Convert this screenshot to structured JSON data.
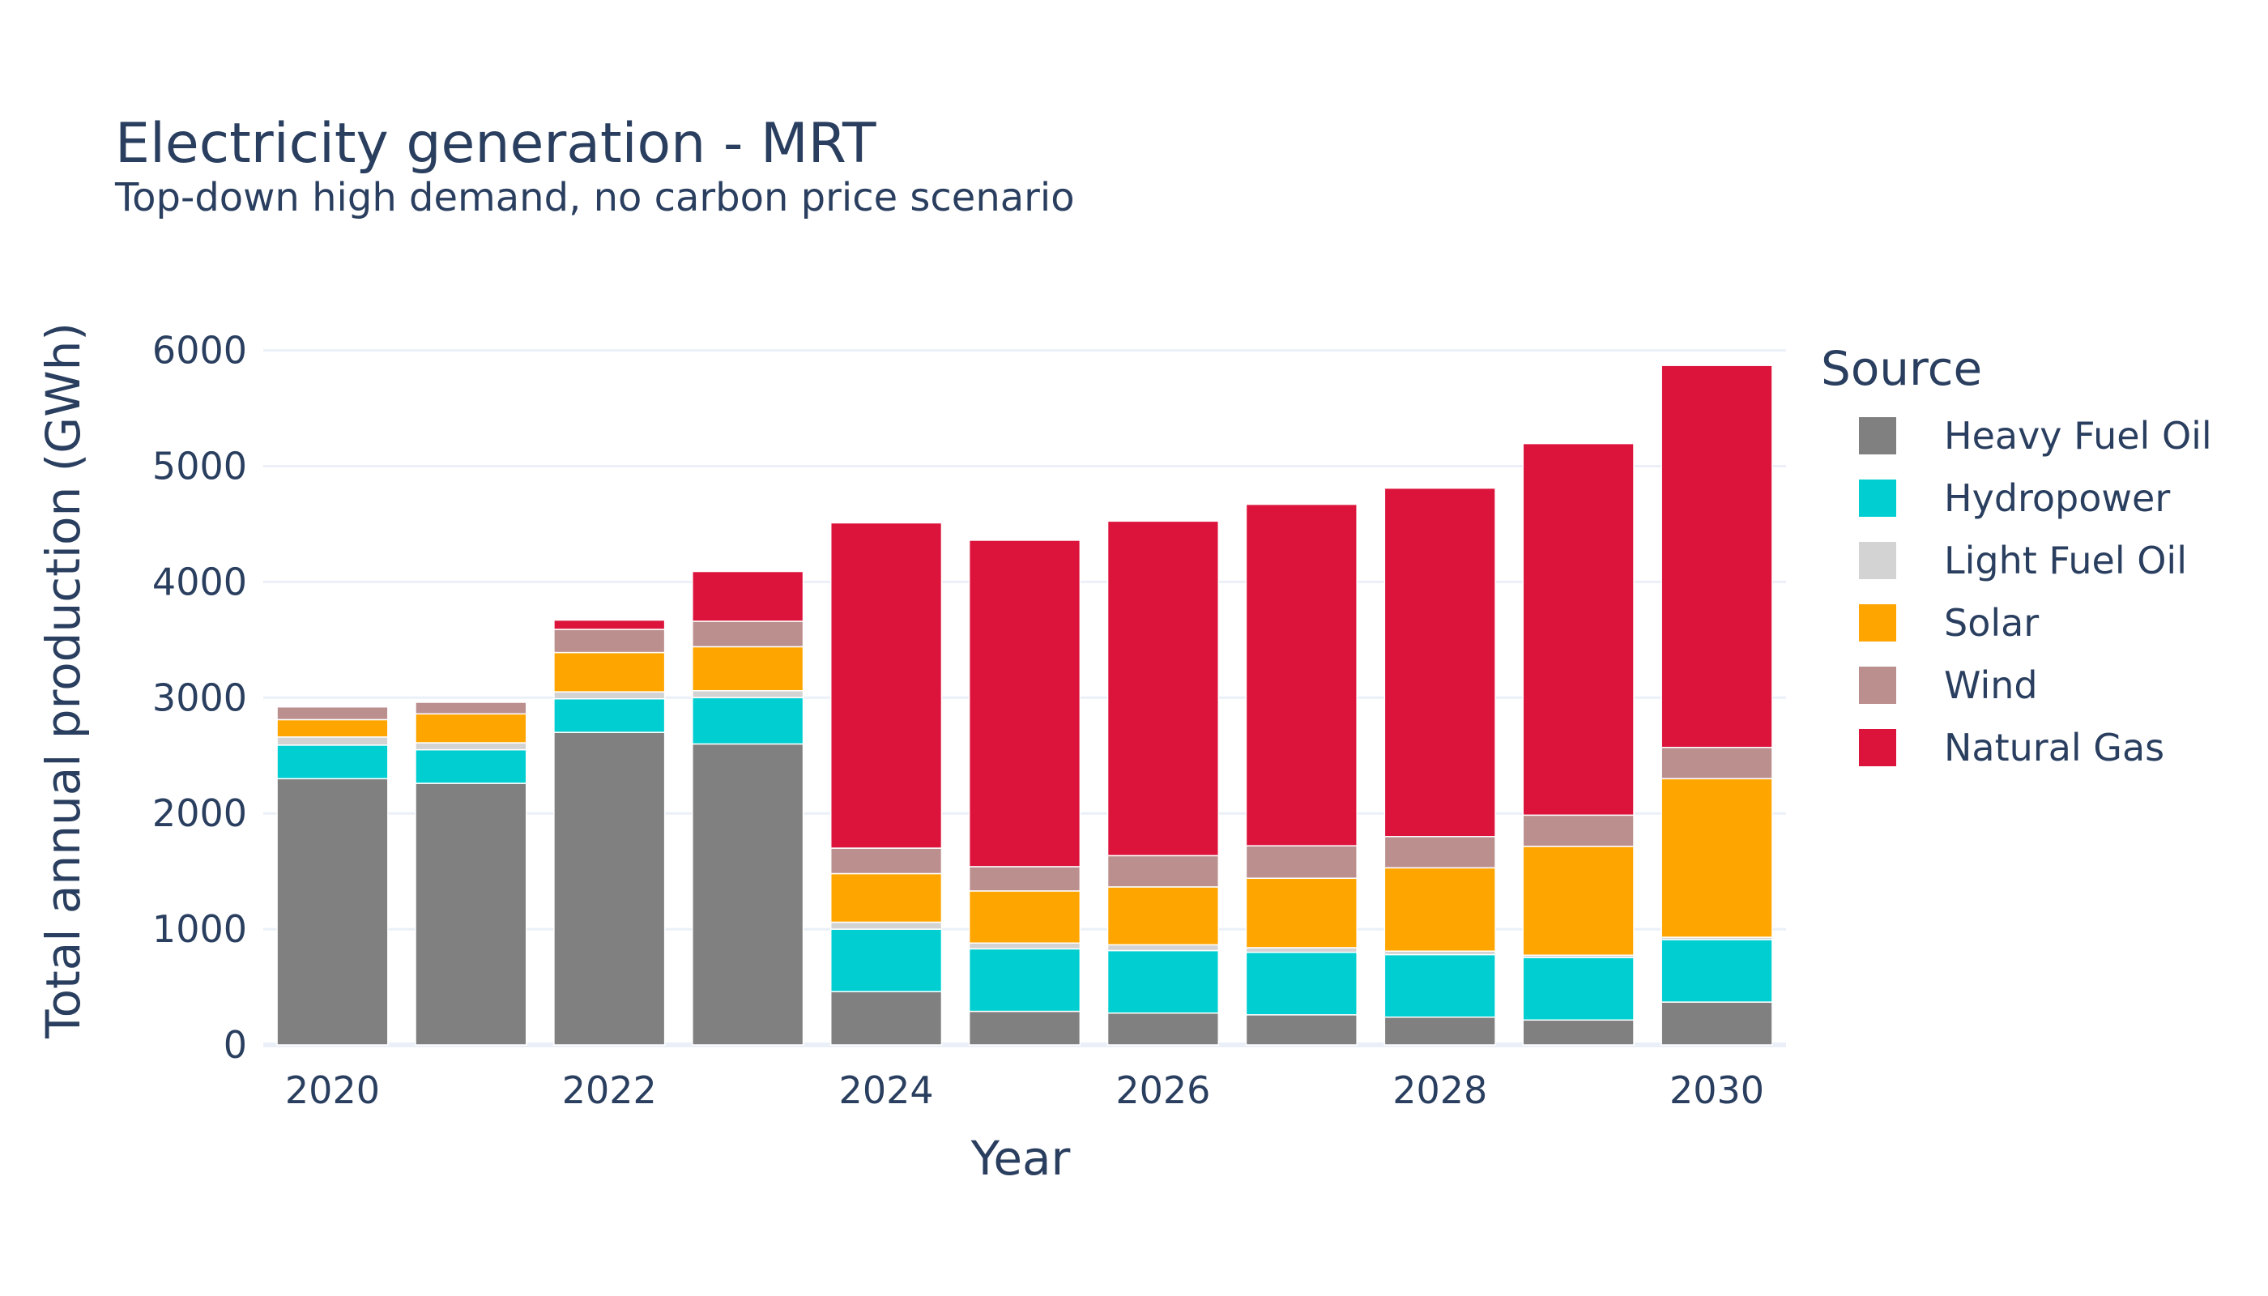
{
  "chart_data": {
    "type": "bar",
    "stacked": true,
    "title": "Electricity generation - MRT",
    "subtitle": "Top-down high demand, no carbon price scenario",
    "xlabel": "Year",
    "ylabel": "Total annual production (GWh)",
    "ylim": [
      0,
      6200
    ],
    "yticks": [
      0,
      1000,
      2000,
      3000,
      4000,
      5000,
      6000
    ],
    "xtick_labels": [
      "2020",
      "2022",
      "2024",
      "2026",
      "2028",
      "2030"
    ],
    "grid": true,
    "legend_title": "Source",
    "legend_position": "right",
    "categories": [
      2020,
      2021,
      2022,
      2023,
      2024,
      2025,
      2026,
      2027,
      2028,
      2029,
      2030
    ],
    "series": [
      {
        "name": "Heavy Fuel Oil",
        "color": "#808080",
        "values": [
          2300,
          2260,
          2700,
          2600,
          460,
          290,
          275,
          260,
          240,
          215,
          370
        ]
      },
      {
        "name": "Hydropower",
        "color": "#00CED1",
        "values": [
          290,
          290,
          290,
          400,
          540,
          540,
          540,
          540,
          540,
          540,
          540
        ]
      },
      {
        "name": "Light Fuel Oil",
        "color": "#D3D3D3",
        "values": [
          70,
          60,
          60,
          60,
          60,
          50,
          50,
          40,
          30,
          20,
          20
        ]
      },
      {
        "name": "Solar",
        "color": "#FFA500",
        "values": [
          150,
          250,
          340,
          380,
          420,
          450,
          500,
          600,
          720,
          940,
          1370
        ]
      },
      {
        "name": "Wind",
        "color": "#BC8F8F",
        "values": [
          110,
          100,
          200,
          220,
          220,
          210,
          270,
          280,
          270,
          270,
          270
        ]
      },
      {
        "name": "Natural Gas",
        "color": "#DC143C",
        "values": [
          0,
          0,
          80,
          430,
          2810,
          2820,
          2890,
          2950,
          3010,
          3210,
          3300
        ]
      }
    ]
  }
}
